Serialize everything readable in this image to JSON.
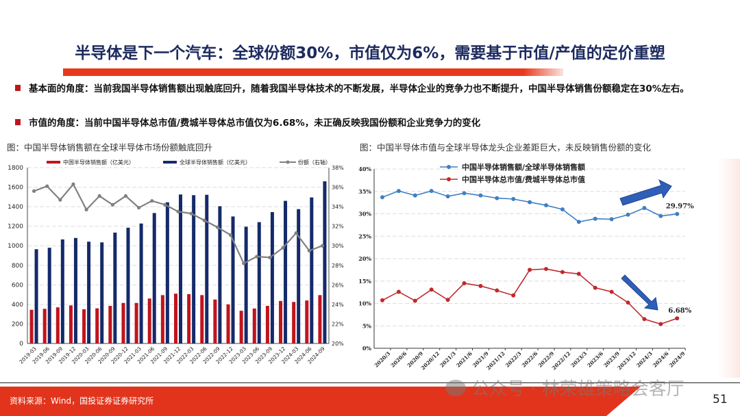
{
  "title": "半导体是下一个汽车：全球份额30%，市值仅为6%，需要基于市值/产值的定价重塑",
  "bullets": [
    "基本面的角度：当前我国半导体销售额出现触底回升，随着我国半导体技术的不断发展，半导体企业的竞争力也不断提升，中国半导体销售份额稳定在30%左右。",
    "市值的角度：当前中国半导体总市值/费城半导体总市值仅为6.68%，未正确反映我国份额和企业竞争力的变化"
  ],
  "captions": {
    "left": "图：中国半导体销售额在全球半导体市场份额触底回升",
    "right": "图：中国半导体市值与全球半导体龙头企业差距巨大，未反映销售份额的变化"
  },
  "footer": {
    "source": "资料来源：Wind，国投证券证券研究所",
    "page": "51",
    "watermark": "公众号 · 林荣雄策略会客厅"
  },
  "colors": {
    "accent": "#e2341c",
    "china_bar": "#c0151d",
    "global_bar": "#142a6b",
    "share_line": "#808080",
    "blue_line": "#3f7fc4",
    "red_line": "#c0292b"
  },
  "chart_data": [
    {
      "type": "bar+line",
      "categories": [
        "2019-03",
        "2019-06",
        "2019-09",
        "2019-12",
        "2020-03",
        "2020-06",
        "2020-09",
        "2020-12",
        "2021-03",
        "2021-06",
        "2021-09",
        "2021-12",
        "2022-03",
        "2022-06",
        "2022-09",
        "2022-12",
        "2023-03",
        "2023-06",
        "2023-09",
        "2023-12",
        "2024-03",
        "2024-06",
        "2024-09"
      ],
      "series": [
        {
          "name": "中国半导体销售额（亿美元）",
          "type": "bar",
          "axis": "left",
          "values": [
            345,
            355,
            370,
            390,
            350,
            360,
            385,
            415,
            415,
            460,
            495,
            510,
            505,
            495,
            450,
            400,
            335,
            358,
            385,
            435,
            425,
            440,
            495
          ]
        },
        {
          "name": "全球半导体销售额（亿美元）",
          "type": "bar",
          "axis": "left",
          "values": [
            965,
            980,
            1065,
            1080,
            1042,
            1035,
            1135,
            1185,
            1228,
            1335,
            1445,
            1525,
            1518,
            1522,
            1405,
            1300,
            1195,
            1242,
            1345,
            1460,
            1375,
            1495,
            1660
          ]
        },
        {
          "name": "份额（右轴）",
          "type": "line",
          "axis": "right",
          "values": [
            35.6,
            36.1,
            34.7,
            36.3,
            33.7,
            35.1,
            34.2,
            35.1,
            33.9,
            34.6,
            34.2,
            33.5,
            33.3,
            32.6,
            31.9,
            31.1,
            28.2,
            28.9,
            28.8,
            29.8,
            31.3,
            29.5,
            30.0
          ]
        }
      ],
      "ylim_left": [
        0,
        1800
      ],
      "yticks_left": [
        "0",
        "200",
        "400",
        "600",
        "800",
        "1000",
        "1200",
        "1400",
        "1600",
        "1800"
      ],
      "ylim_right": [
        20,
        38
      ],
      "yticks_right": [
        "20%",
        "22%",
        "24%",
        "26%",
        "28%",
        "30%",
        "32%",
        "34%",
        "36%",
        "38%"
      ],
      "legend": "top",
      "grid": true
    },
    {
      "type": "line",
      "categories": [
        "2020/3",
        "2020/6",
        "2020/9",
        "2020/12",
        "2021/3",
        "2021/6",
        "2021/9",
        "2021/12",
        "2022/3",
        "2022/6",
        "2022/9",
        "2022/12",
        "2023/3",
        "2023/6",
        "2023/9",
        "2023/12",
        "2024/3",
        "2024/6",
        "2024/9"
      ],
      "series": [
        {
          "name": "中国半导体销售额/全球半导体销售额",
          "values": [
            33.7,
            35.1,
            34.1,
            35.1,
            33.9,
            34.6,
            34.1,
            33.5,
            33.3,
            32.6,
            31.9,
            31.0,
            28.2,
            28.9,
            28.8,
            29.8,
            31.3,
            29.5,
            29.97
          ]
        },
        {
          "name": "中国半导体总市值/费城半导体总市值",
          "values": [
            10.7,
            12.6,
            10.6,
            13.1,
            10.8,
            14.5,
            13.9,
            12.9,
            11.8,
            17.5,
            17.7,
            17.0,
            16.6,
            13.5,
            12.6,
            10.2,
            6.5,
            5.4,
            6.68
          ]
        }
      ],
      "data_labels": [
        "29.97%",
        "6.68%"
      ],
      "ylim": [
        0,
        40
      ],
      "yticks": [
        "0%",
        "5%",
        "10%",
        "15%",
        "20%",
        "25%",
        "30%",
        "35%",
        "40%"
      ],
      "annotations": [
        "arrow-up-right",
        "arrow-down-right"
      ],
      "legend": "top",
      "grid": true
    }
  ]
}
